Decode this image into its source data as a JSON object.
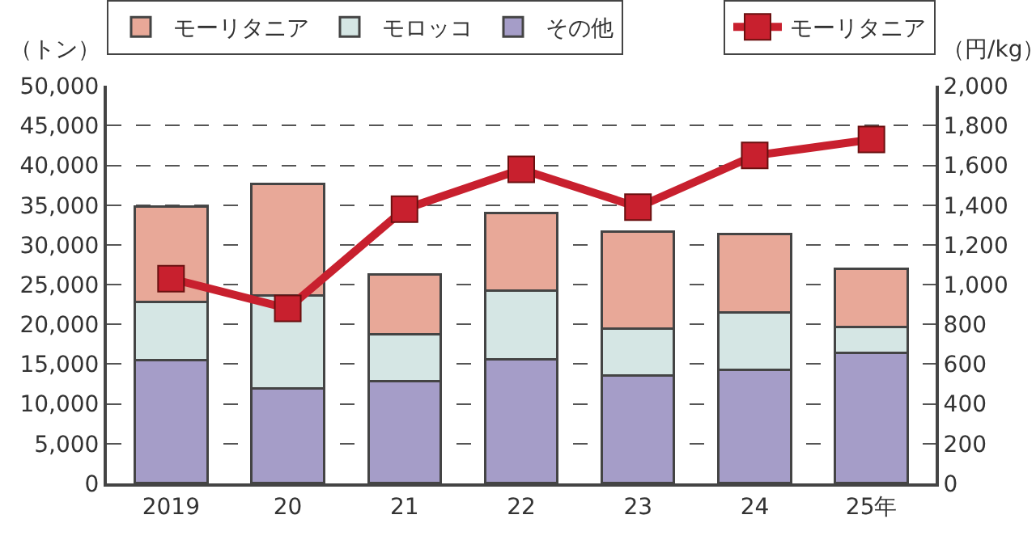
{
  "chart_data": {
    "type": "bar",
    "stacked": true,
    "ylabel": "（トン）",
    "y2label": "（円/kg）",
    "categories": [
      "2019",
      "20",
      "21",
      "22",
      "23",
      "24",
      "25年"
    ],
    "series": [
      {
        "name": "その他",
        "color": "#a59dc8",
        "values": [
          15500,
          11900,
          12900,
          15600,
          13600,
          14300,
          16400
        ]
      },
      {
        "name": "モロッコ",
        "color": "#d5e6e4",
        "values": [
          7300,
          11700,
          5900,
          8600,
          5900,
          7200,
          3300
        ]
      },
      {
        "name": "モーリタニア",
        "color": "#e8a898",
        "values": [
          12000,
          14100,
          7500,
          9800,
          12200,
          9900,
          7300
        ]
      },
      {
        "name": "モーリタニア",
        "type": "line",
        "axis": "y2",
        "color": "#c8202e",
        "marker": "square",
        "line_style": "solid",
        "values": [
          1030,
          880,
          1380,
          1580,
          1390,
          1650,
          1730
        ]
      }
    ],
    "ylim": [
      0,
      50000
    ],
    "yticks": [
      {
        "value": 0,
        "label": "0"
      },
      {
        "value": 5000,
        "label": "5,000"
      },
      {
        "value": 10000,
        "label": "10,000"
      },
      {
        "value": 15000,
        "label": "15,000"
      },
      {
        "value": 20000,
        "label": "20,000"
      },
      {
        "value": 25000,
        "label": "25,000"
      },
      {
        "value": 30000,
        "label": "30,000"
      },
      {
        "value": 35000,
        "label": "35,000"
      },
      {
        "value": 40000,
        "label": "40,000"
      },
      {
        "value": 45000,
        "label": "45,000"
      },
      {
        "value": 50000,
        "label": "50,000"
      }
    ],
    "y2lim": [
      0,
      2000
    ],
    "y2ticks": [
      0,
      200,
      400,
      600,
      800,
      {
        "value": 1000,
        "label": "1,000"
      },
      {
        "value": 1200,
        "label": "1,200"
      },
      {
        "value": 1400,
        "label": "1,400"
      },
      {
        "value": 1600,
        "label": "1,600"
      },
      {
        "value": 1800,
        "label": "1,800"
      },
      {
        "value": 2000,
        "label": "2,000"
      }
    ],
    "grid": "y",
    "legend": "top"
  }
}
